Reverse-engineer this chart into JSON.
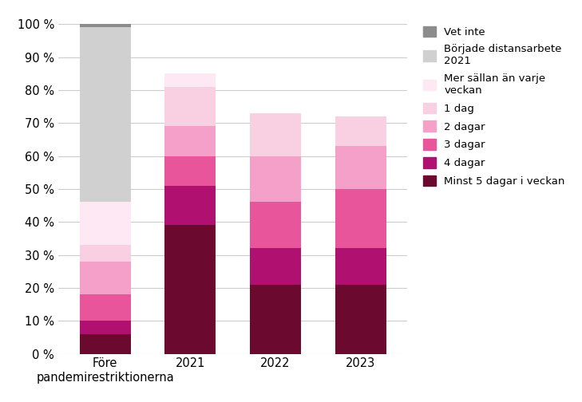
{
  "categories": [
    "Före\npandemirestriktionerna",
    "2021",
    "2022",
    "2023"
  ],
  "series": [
    {
      "label": "Minst 5 dagar i veckan",
      "color": "#6b0a2e",
      "values": [
        6,
        39,
        21,
        21
      ]
    },
    {
      "label": "4 dagar",
      "color": "#b01070",
      "values": [
        4,
        12,
        11,
        11
      ]
    },
    {
      "label": "3 dagar",
      "color": "#e8559a",
      "values": [
        8,
        9,
        14,
        18
      ]
    },
    {
      "label": "2 dagar",
      "color": "#f4a0c8",
      "values": [
        10,
        9,
        14,
        13
      ]
    },
    {
      "label": "1 dag",
      "color": "#f9cfe2",
      "values": [
        5,
        12,
        13,
        9
      ]
    },
    {
      "label": "Mer sällan än varje\nveckan",
      "color": "#fde8f4",
      "values": [
        13,
        4,
        0,
        0
      ]
    },
    {
      "label": "Började distansarbete\n2021",
      "color": "#d0d0d0",
      "values": [
        53,
        0,
        0,
        0
      ]
    },
    {
      "label": "Vet inte",
      "color": "#8c8c8c",
      "values": [
        2,
        0,
        0,
        0
      ]
    }
  ],
  "ylim": [
    0,
    100
  ],
  "ytick_labels": [
    "0 %",
    "10 %",
    "20 %",
    "30 %",
    "40 %",
    "50 %",
    "60 %",
    "70 %",
    "80 %",
    "90 %",
    "100 %"
  ],
  "ytick_values": [
    0,
    10,
    20,
    30,
    40,
    50,
    60,
    70,
    80,
    90,
    100
  ],
  "bar_width": 0.6,
  "background_color": "#ffffff",
  "grid_color": "#cccccc",
  "font_size": 10.5,
  "legend_font_size": 9.5
}
